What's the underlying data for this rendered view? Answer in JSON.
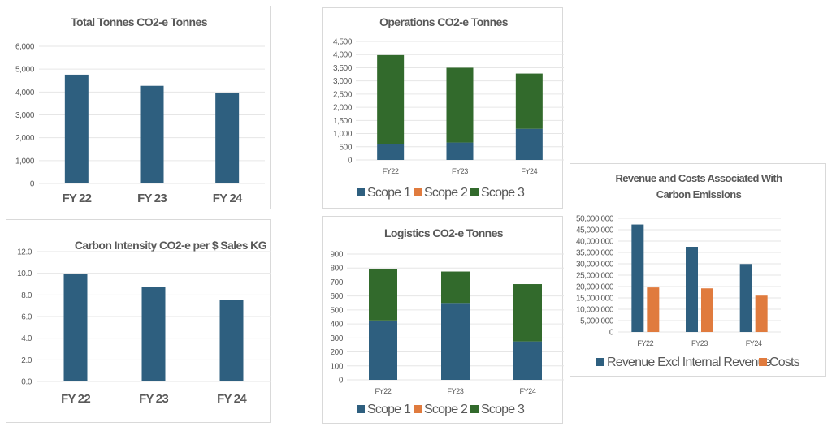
{
  "colors": {
    "scope1": "#2e5f7f",
    "scope2": "#e07b3e",
    "scope3": "#326a2c",
    "revenue": "#2e5f7f",
    "costs": "#e07b3e",
    "bar": "#2e5f7f"
  },
  "chart_data": [
    {
      "id": "total",
      "type": "bar",
      "title": "Total Tonnes CO2-e Tonnes",
      "categories": [
        "FY 22",
        "FY 23",
        "FY 24"
      ],
      "values": [
        4760,
        4270,
        3960
      ],
      "yticks": [
        "0",
        "1,000",
        "2,000",
        "3,000",
        "4,000",
        "5,000",
        "6,000"
      ],
      "ylim": [
        0,
        6000
      ],
      "grid": true,
      "legend": null
    },
    {
      "id": "intensity",
      "type": "bar",
      "title": "Carbon Intensity CO2-e per $ Sales KG",
      "categories": [
        "FY 22",
        "FY 23",
        "FY 24"
      ],
      "values": [
        9.9,
        8.7,
        7.5
      ],
      "yticks": [
        "0.0",
        "2.0",
        "4.0",
        "6.0",
        "8.0",
        "10.0",
        "12.0"
      ],
      "ylim": [
        0,
        12
      ],
      "grid": true,
      "legend": null
    },
    {
      "id": "operations",
      "type": "bar",
      "stacked": true,
      "title": "Operations CO2-e Tonnes",
      "categories": [
        "FY22",
        "FY23",
        "FY24"
      ],
      "series": [
        {
          "name": "Scope 1",
          "values": [
            590,
            660,
            1180
          ]
        },
        {
          "name": "Scope 2",
          "values": [
            0,
            0,
            0
          ]
        },
        {
          "name": "Scope 3",
          "values": [
            3390,
            2840,
            2100
          ]
        }
      ],
      "yticks": [
        "0",
        "500",
        "1,000",
        "1,500",
        "2,000",
        "2,500",
        "3,000",
        "3,500",
        "4,000",
        "4,500"
      ],
      "ylim": [
        0,
        4500
      ],
      "grid": true,
      "legend": "bottom"
    },
    {
      "id": "logistics",
      "type": "bar",
      "stacked": true,
      "title": "Logistics  CO2-e Tonnes",
      "categories": [
        "FY22",
        "FY23",
        "FY24"
      ],
      "series": [
        {
          "name": "Scope 1",
          "values": [
            425,
            550,
            275
          ]
        },
        {
          "name": "Scope 2",
          "values": [
            0,
            0,
            0
          ]
        },
        {
          "name": "Scope 3",
          "values": [
            370,
            225,
            410
          ]
        }
      ],
      "yticks": [
        "0",
        "100",
        "200",
        "300",
        "400",
        "500",
        "600",
        "700",
        "800",
        "900"
      ],
      "ylim": [
        0,
        900
      ],
      "grid": true,
      "legend": "bottom"
    },
    {
      "id": "revenue",
      "type": "bar",
      "stacked": false,
      "title": "Revenue and Costs Associated With Carbon Emissions",
      "title_lines": [
        "Revenue and Costs Associated With",
        "Carbon Emissions"
      ],
      "categories": [
        "FY22",
        "FY23",
        "FY24"
      ],
      "series": [
        {
          "name": "Revenue Excl Internal Revenue",
          "values": [
            47300000,
            37500000,
            29900000
          ]
        },
        {
          "name": "Costs",
          "values": [
            19600000,
            19200000,
            16000000
          ]
        }
      ],
      "yticks": [
        "0",
        "5,000,000",
        "10,000,000",
        "15,000,000",
        "20,000,000",
        "25,000,000",
        "30,000,000",
        "35,000,000",
        "40,000,000",
        "45,000,000",
        "50,000,000"
      ],
      "ylim": [
        0,
        50000000
      ],
      "grid": true,
      "legend": "bottom"
    }
  ]
}
